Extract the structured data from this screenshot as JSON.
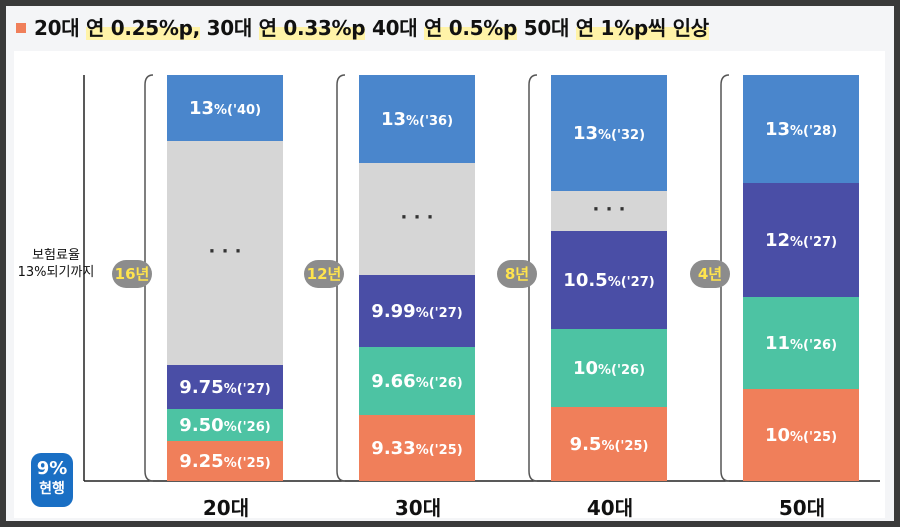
{
  "headline": "20대 연 0.25%p, 30대 연 0.33%p 40대 연 0.5%p 50대 연 1%p씩 인상",
  "headline_highlights": [
    "연 0.25%p,",
    "연 0.33%p",
    "연 0.5%p",
    "연 1%p씩 인상"
  ],
  "y_axis_label_line1": "보험료율",
  "y_axis_label_line2": "13%되기까지",
  "current_badge": {
    "value": "9%",
    "label": "현행"
  },
  "colors": {
    "bullet": "#f07f5a",
    "badge": "#1a6fc4",
    "seg_2025": "#f07f5a",
    "seg_2026": "#4dc3a3",
    "seg_2027": "#4a4ea6",
    "seg_gap": "#d6d6d6",
    "seg_target": "#4a86cc"
  },
  "chart_data": {
    "type": "bar",
    "stacked": true,
    "categories": [
      "20대",
      "30대",
      "40대",
      "50대"
    ],
    "years_to_target": [
      "16년",
      "12년",
      "8년",
      "4년"
    ],
    "target_rate": 13,
    "bars": [
      {
        "category": "20대",
        "duration": "16년",
        "segments": [
          {
            "value": "9.25",
            "year": "%('25)",
            "kind": "2025"
          },
          {
            "value": "9.50",
            "year": "%('26)",
            "kind": "2026"
          },
          {
            "value": "9.75",
            "year": "%('27)",
            "kind": "2027"
          },
          {
            "value": "· · ·",
            "year": "",
            "kind": "gap"
          },
          {
            "value": "13",
            "year": "%('40)",
            "kind": "target"
          }
        ]
      },
      {
        "category": "30대",
        "duration": "12년",
        "segments": [
          {
            "value": "9.33",
            "year": "%('25)",
            "kind": "2025"
          },
          {
            "value": "9.66",
            "year": "%('26)",
            "kind": "2026"
          },
          {
            "value": "9.99",
            "year": "%('27)",
            "kind": "2027"
          },
          {
            "value": "· · ·",
            "year": "",
            "kind": "gap"
          },
          {
            "value": "13",
            "year": "%('36)",
            "kind": "target"
          }
        ]
      },
      {
        "category": "40대",
        "duration": "8년",
        "segments": [
          {
            "value": "9.5",
            "year": "%('25)",
            "kind": "2025"
          },
          {
            "value": "10",
            "year": "%('26)",
            "kind": "2026"
          },
          {
            "value": "10.5",
            "year": "%('27)",
            "kind": "2027"
          },
          {
            "value": "· · ·",
            "year": "",
            "kind": "gap"
          },
          {
            "value": "13",
            "year": "%('32)",
            "kind": "target"
          }
        ]
      },
      {
        "category": "50대",
        "duration": "4년",
        "segments": [
          {
            "value": "10",
            "year": "%('25)",
            "kind": "2025"
          },
          {
            "value": "11",
            "year": "%('26)",
            "kind": "2026"
          },
          {
            "value": "12",
            "year": "%('27)",
            "kind": "2027"
          },
          {
            "value": "13",
            "year": "%('28)",
            "kind": "target"
          }
        ]
      }
    ]
  }
}
